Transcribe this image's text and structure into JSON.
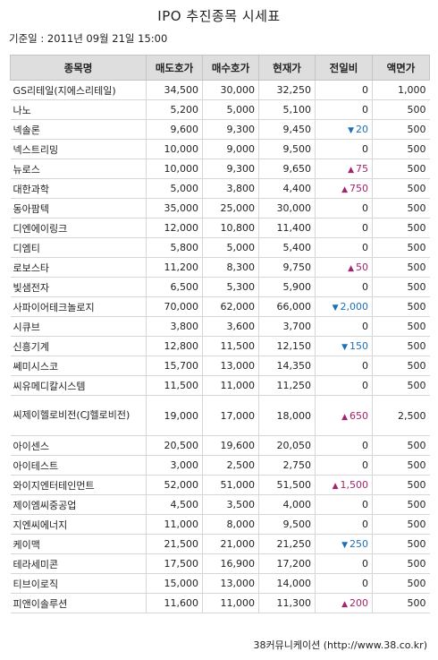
{
  "title": "IPO 추진종목 시세표",
  "base_date": "기준일 : 2011년 09월 21일 15:00",
  "headers": [
    "종목명",
    "매도호가",
    "매수호가",
    "현재가",
    "전일비",
    "액면가"
  ],
  "rows": [
    {
      "name": "GS리테일(지에스리테일)",
      "ask": "34,500",
      "bid": "30,000",
      "price": "32,250",
      "dir": "",
      "change": "0",
      "par": "1,000"
    },
    {
      "name": "나노",
      "ask": "5,200",
      "bid": "5,000",
      "price": "5,100",
      "dir": "",
      "change": "0",
      "par": "500"
    },
    {
      "name": "넥솔론",
      "ask": "9,600",
      "bid": "9,300",
      "price": "9,450",
      "dir": "down",
      "change": "20",
      "par": "500"
    },
    {
      "name": "넥스트리밍",
      "ask": "10,000",
      "bid": "9,000",
      "price": "9,500",
      "dir": "",
      "change": "0",
      "par": "500"
    },
    {
      "name": "뉴로스",
      "ask": "10,000",
      "bid": "9,300",
      "price": "9,650",
      "dir": "up",
      "change": "75",
      "par": "500"
    },
    {
      "name": "대한과학",
      "ask": "5,000",
      "bid": "3,800",
      "price": "4,400",
      "dir": "up",
      "change": "750",
      "par": "500"
    },
    {
      "name": "동아팜텍",
      "ask": "35,000",
      "bid": "25,000",
      "price": "30,000",
      "dir": "",
      "change": "0",
      "par": "500"
    },
    {
      "name": "디엔에이링크",
      "ask": "12,000",
      "bid": "10,800",
      "price": "11,400",
      "dir": "",
      "change": "0",
      "par": "500"
    },
    {
      "name": "디엠티",
      "ask": "5,800",
      "bid": "5,000",
      "price": "5,400",
      "dir": "",
      "change": "0",
      "par": "500"
    },
    {
      "name": "로보스타",
      "ask": "11,200",
      "bid": "8,300",
      "price": "9,750",
      "dir": "up",
      "change": "50",
      "par": "500"
    },
    {
      "name": "빛샘전자",
      "ask": "6,500",
      "bid": "5,300",
      "price": "5,900",
      "dir": "",
      "change": "0",
      "par": "500"
    },
    {
      "name": "사파이어테크놀로지",
      "ask": "70,000",
      "bid": "62,000",
      "price": "66,000",
      "dir": "down",
      "change": "2,000",
      "par": "500"
    },
    {
      "name": "시큐브",
      "ask": "3,800",
      "bid": "3,600",
      "price": "3,700",
      "dir": "",
      "change": "0",
      "par": "500"
    },
    {
      "name": "신흥기계",
      "ask": "12,800",
      "bid": "11,500",
      "price": "12,150",
      "dir": "down",
      "change": "150",
      "par": "500"
    },
    {
      "name": "쎄미시스코",
      "ask": "15,700",
      "bid": "13,000",
      "price": "14,350",
      "dir": "",
      "change": "0",
      "par": "500"
    },
    {
      "name": "씨유메디칼시스템",
      "ask": "11,500",
      "bid": "11,000",
      "price": "11,250",
      "dir": "",
      "change": "0",
      "par": "500"
    },
    {
      "name": "씨제이헬로비전(CJ헬로비전)",
      "ask": "19,000",
      "bid": "17,000",
      "price": "18,000",
      "dir": "up",
      "change": "650",
      "par": "2,500",
      "wrap": true
    },
    {
      "name": "아이센스",
      "ask": "20,500",
      "bid": "19,600",
      "price": "20,050",
      "dir": "",
      "change": "0",
      "par": "500"
    },
    {
      "name": "아이테스트",
      "ask": "3,000",
      "bid": "2,500",
      "price": "2,750",
      "dir": "",
      "change": "0",
      "par": "500"
    },
    {
      "name": "와이지엔터테인먼트",
      "ask": "52,000",
      "bid": "51,000",
      "price": "51,500",
      "dir": "up",
      "change": "1,500",
      "par": "500"
    },
    {
      "name": "제이엠씨중공업",
      "ask": "4,500",
      "bid": "3,500",
      "price": "4,000",
      "dir": "",
      "change": "0",
      "par": "500"
    },
    {
      "name": "지엔씨에너지",
      "ask": "11,000",
      "bid": "8,000",
      "price": "9,500",
      "dir": "",
      "change": "0",
      "par": "500"
    },
    {
      "name": "케이맥",
      "ask": "21,500",
      "bid": "21,000",
      "price": "21,250",
      "dir": "down",
      "change": "250",
      "par": "500"
    },
    {
      "name": "테라세미콘",
      "ask": "17,500",
      "bid": "16,900",
      "price": "17,200",
      "dir": "",
      "change": "0",
      "par": "500"
    },
    {
      "name": "티브이로직",
      "ask": "15,000",
      "bid": "13,000",
      "price": "14,000",
      "dir": "",
      "change": "0",
      "par": "500"
    },
    {
      "name": "피앤이솔루션",
      "ask": "11,600",
      "bid": "11,000",
      "price": "11,300",
      "dir": "up",
      "change": "200",
      "par": "500"
    }
  ],
  "arrows": {
    "up": "▲",
    "down": "▼"
  },
  "colors": {
    "up": "#a3246e",
    "down": "#1e6fb5",
    "header_bg": "#dedede"
  },
  "source": "38커뮤니케이션 (http://www.38.co.kr)"
}
